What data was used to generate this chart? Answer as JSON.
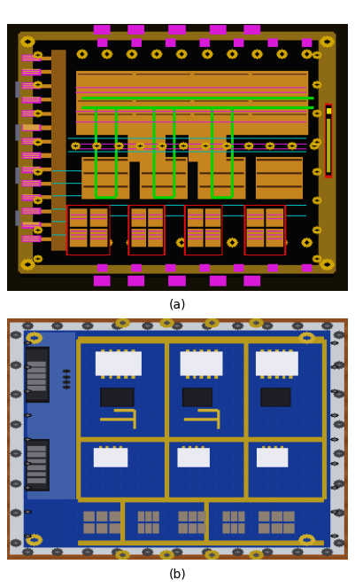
{
  "label_a": "(a)",
  "label_b": "(b)",
  "fig_width": 4.01,
  "fig_height": 6.63,
  "dpi": 100,
  "bg_color": "#ffffff",
  "label_fontsize": 10
}
